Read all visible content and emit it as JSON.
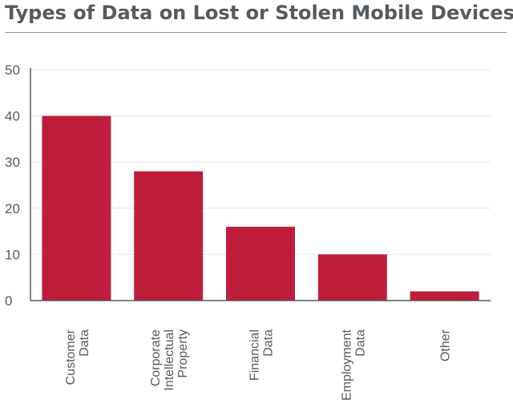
{
  "chart_data": {
    "type": "bar",
    "title": "Types of Data on Lost or Stolen Mobile Devices",
    "categories": [
      "Customer Data",
      "Corporate Intellectual Property",
      "Financial Data",
      "Employment Data",
      "Other"
    ],
    "category_label_lines": [
      [
        "Customer",
        "Data"
      ],
      [
        "Corporate",
        "Intellectual",
        "Property"
      ],
      [
        "Financial",
        "Data"
      ],
      [
        "Employment",
        "Data"
      ],
      [
        "Other"
      ]
    ],
    "values": [
      40,
      28,
      16,
      10,
      2
    ],
    "yticks": [
      "0",
      "10",
      "20",
      "30",
      "40",
      "50"
    ],
    "ylim": [
      0,
      50
    ],
    "xlabel": "",
    "ylabel": "",
    "grid": true,
    "legend": "none",
    "colors": {
      "bar": "#be1e3c",
      "grid": "#e6e6e6",
      "axis": "#555a5f",
      "text": "#555a5f",
      "title": "#555a5f"
    }
  }
}
